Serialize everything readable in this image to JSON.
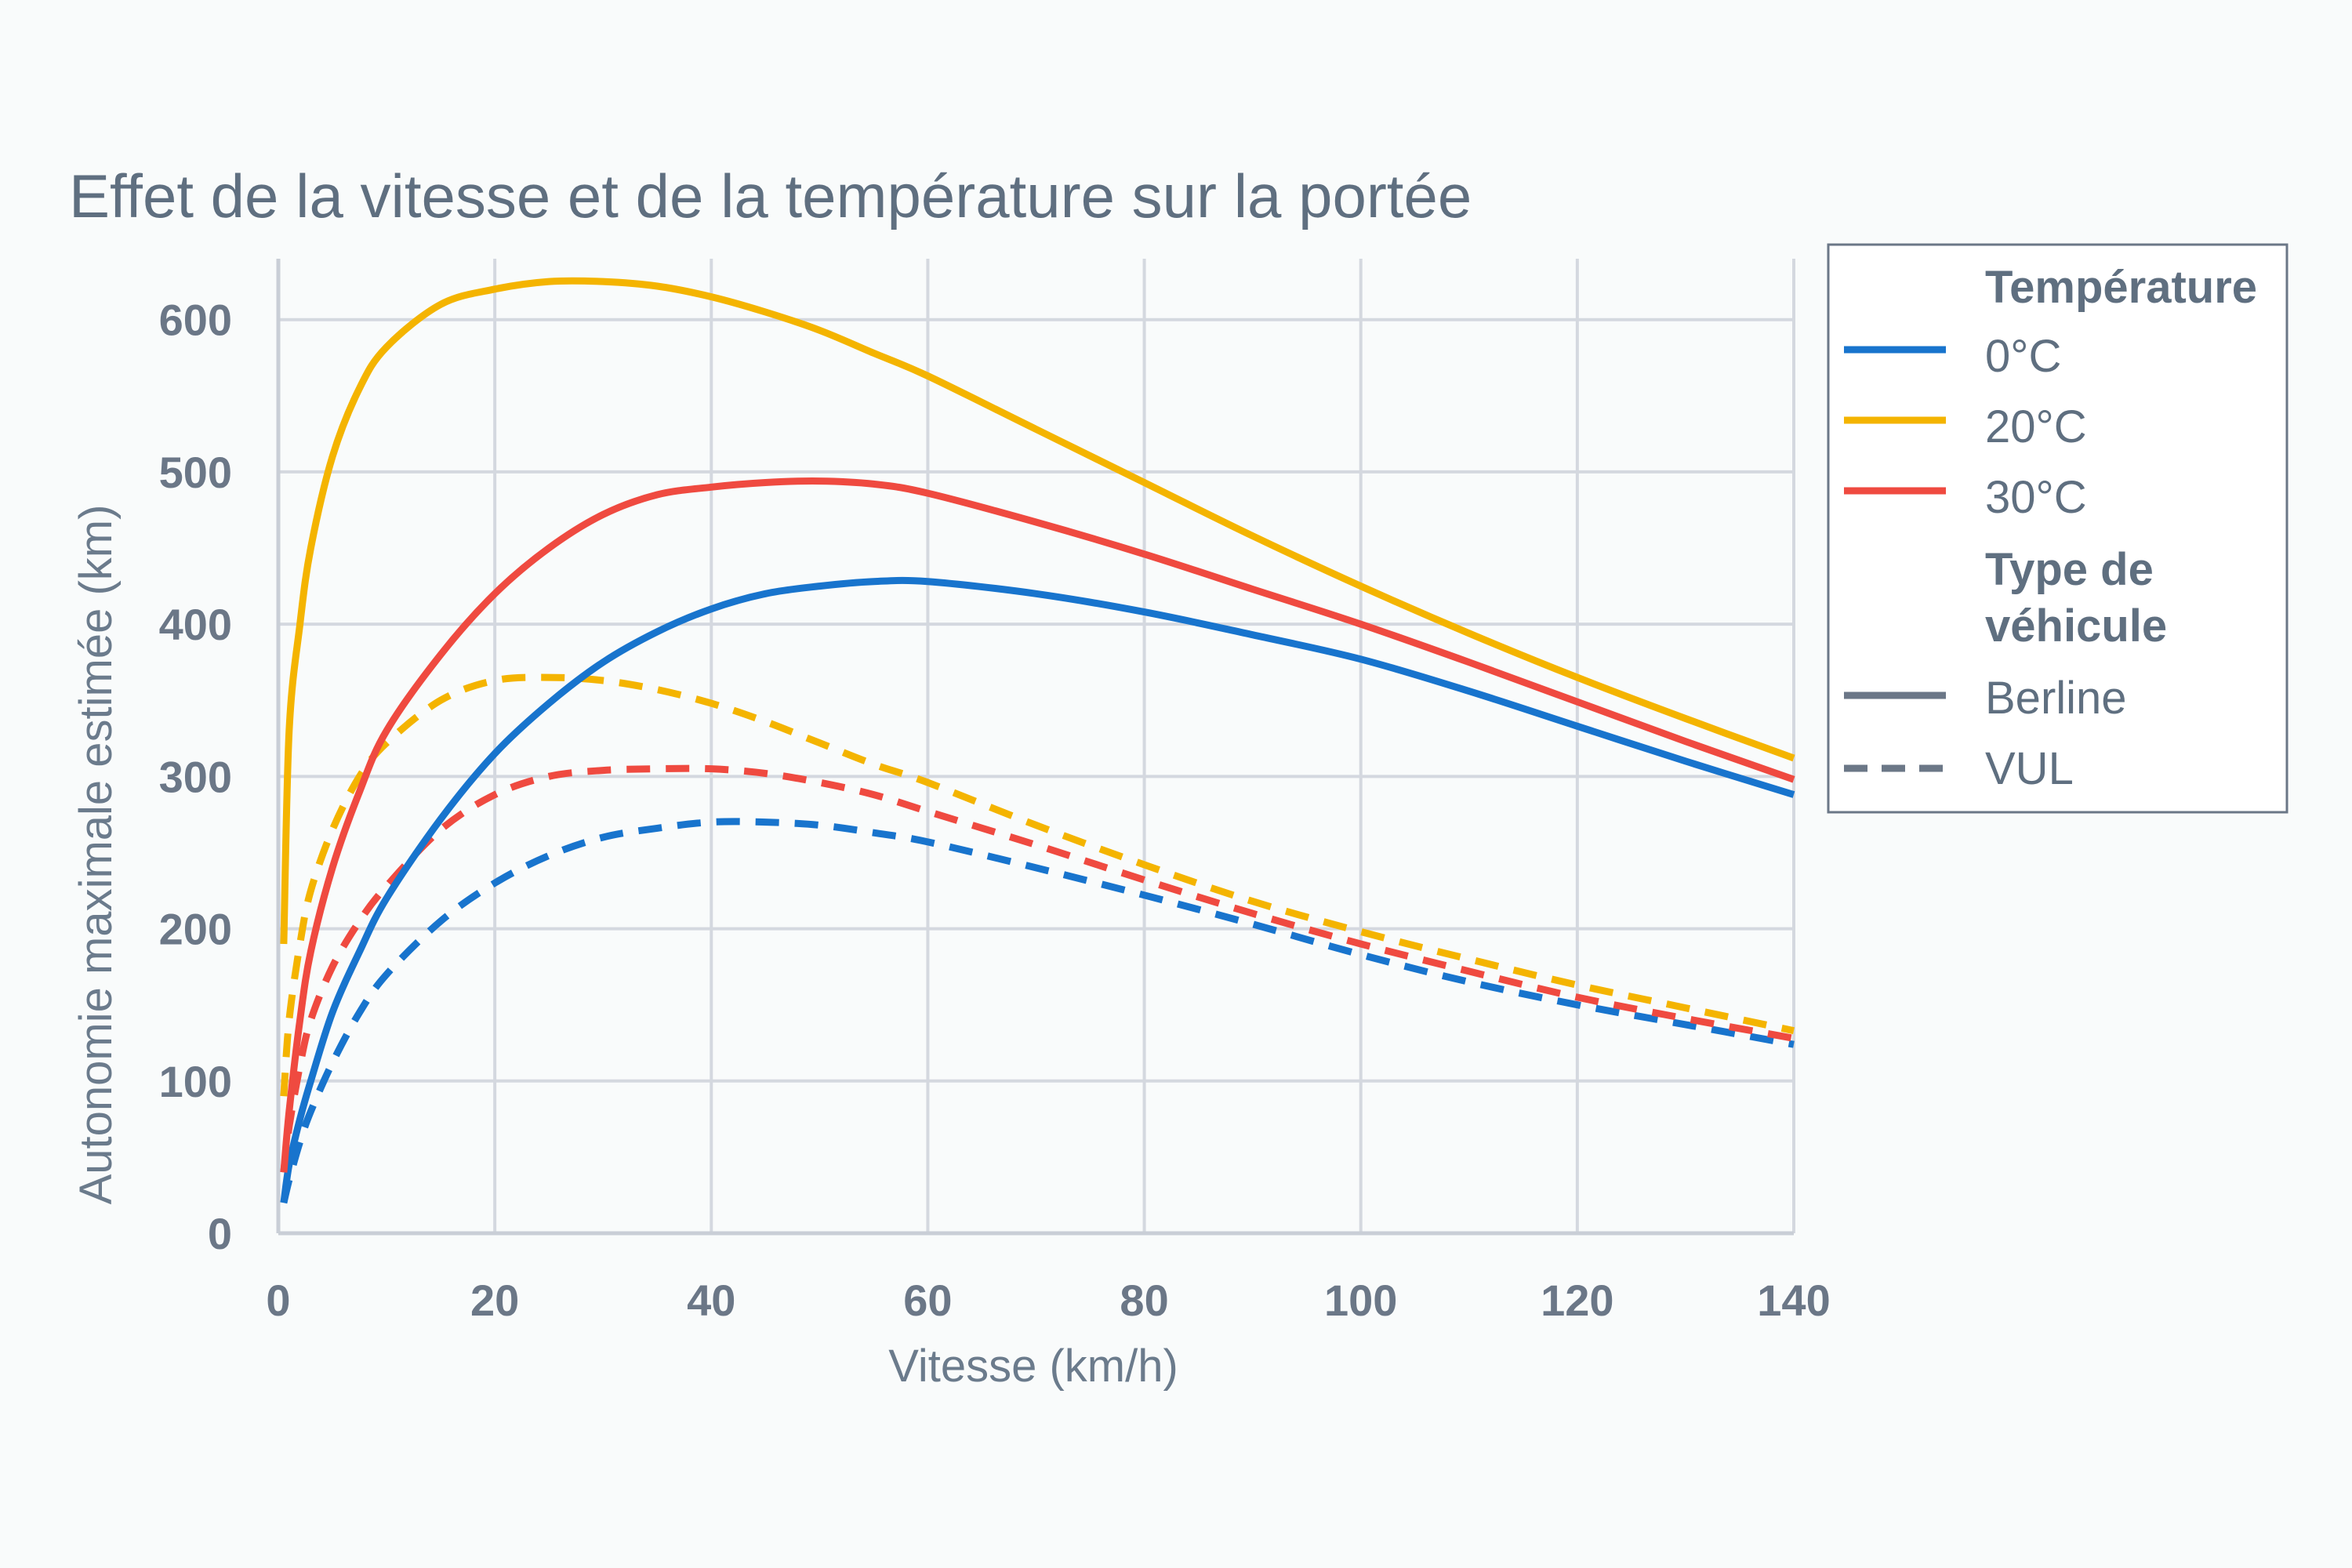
{
  "chart_data": {
    "type": "line",
    "title": "Effet de la vitesse et de la température sur la portée",
    "xlabel": "Vitesse (km/h)",
    "ylabel": "Autonomie maximale estimée (km)",
    "xlim": [
      0,
      140
    ],
    "ylim": [
      0,
      640
    ],
    "xticks": [
      0,
      20,
      40,
      60,
      80,
      100,
      120,
      140
    ],
    "yticks": [
      0,
      100,
      200,
      300,
      400,
      500,
      600
    ],
    "grid": true,
    "legend_position": "right",
    "legend": {
      "temperature_title": "Température",
      "vehicle_title_line1": "Type de",
      "vehicle_title_line2": "véhicule",
      "temperatures": [
        {
          "label": "0°C",
          "color": "#1874cd"
        },
        {
          "label": "20°C",
          "color": "#f4b400"
        },
        {
          "label": "30°C",
          "color": "#ef4a40"
        }
      ],
      "vehicles": [
        {
          "label": "Berline",
          "style": "solid"
        },
        {
          "label": "VUL",
          "style": "dashed"
        }
      ]
    },
    "x": [
      0.5,
      1,
      2,
      3,
      5,
      7.5,
      10,
      15,
      20,
      25,
      30,
      35,
      40,
      45,
      50,
      55,
      60,
      70,
      80,
      90,
      100,
      110,
      120,
      130,
      140
    ],
    "series": [
      {
        "name": "Berline 0°C",
        "temperature": "0°C",
        "vehicle": "Berline",
        "color": "#1874cd",
        "dash": "solid",
        "values": [
          20,
          45,
          75,
          100,
          145,
          185,
          220,
          272,
          315,
          348,
          375,
          395,
          410,
          420,
          425,
          428,
          428,
          420,
          408,
          393,
          377,
          356,
          333,
          310,
          288
        ]
      },
      {
        "name": "Berline 20°C",
        "temperature": "20°C",
        "vehicle": "Berline",
        "color": "#f4b400",
        "dash": "solid",
        "values": [
          190,
          330,
          400,
          450,
          510,
          555,
          582,
          610,
          620,
          625,
          625,
          622,
          615,
          605,
          593,
          578,
          563,
          528,
          493,
          458,
          425,
          394,
          365,
          338,
          312
        ]
      },
      {
        "name": "Berline 30°C",
        "temperature": "30°C",
        "vehicle": "Berline",
        "color": "#ef4a40",
        "dash": "solid",
        "values": [
          40,
          80,
          140,
          185,
          240,
          290,
          330,
          380,
          420,
          450,
          472,
          485,
          490,
          493,
          494,
          492,
          486,
          467,
          446,
          423,
          400,
          375,
          349,
          323,
          298
        ]
      },
      {
        "name": "VUL 0°C",
        "temperature": "0°C",
        "vehicle": "VUL",
        "color": "#1874cd",
        "dash": "dashed",
        "values": [
          20,
          35,
          60,
          80,
          112,
          145,
          170,
          205,
          230,
          248,
          260,
          266,
          270,
          270,
          268,
          263,
          257,
          240,
          222,
          203,
          183,
          165,
          150,
          137,
          124
        ]
      },
      {
        "name": "VUL 20°C",
        "temperature": "20°C",
        "vehicle": "VUL",
        "color": "#f4b400",
        "dash": "dashed",
        "values": [
          90,
          140,
          190,
          225,
          265,
          300,
          322,
          350,
          363,
          365,
          363,
          357,
          348,
          336,
          322,
          308,
          296,
          268,
          242,
          218,
          198,
          180,
          163,
          148,
          133
        ]
      },
      {
        "name": "VUL 30°C",
        "temperature": "30°C",
        "vehicle": "VUL",
        "color": "#ef4a40",
        "dash": "dashed",
        "values": [
          40,
          70,
          110,
          140,
          175,
          205,
          228,
          265,
          288,
          300,
          304,
          305,
          305,
          302,
          296,
          288,
          277,
          255,
          232,
          210,
          190,
          172,
          155,
          141,
          128
        ]
      }
    ]
  }
}
